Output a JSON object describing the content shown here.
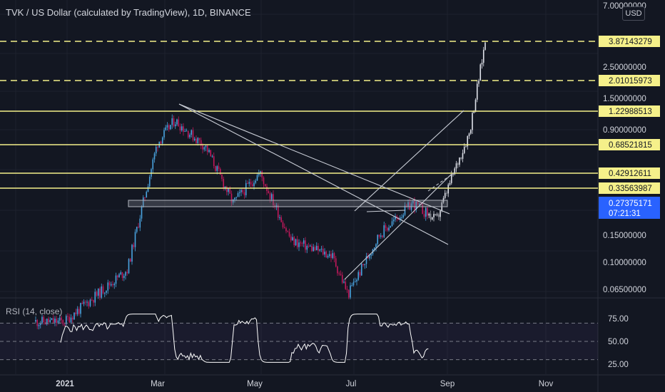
{
  "header": {
    "symbol_title": "TVK / US Dollar (calculated by TradingView), 1D, BINANCE",
    "currency_button": "USD",
    "rsi_title": "RSI (14, close)"
  },
  "colors": {
    "background": "#131722",
    "up_candle": "#4aa3df",
    "down_candle": "#c2185b",
    "level_line": "#f5f08a",
    "trendline": "#c9cdd6",
    "price_tag": "#2962ff",
    "rsi_line": "#ffffff"
  },
  "chart_data": [
    {
      "type": "candlestick",
      "scale": "log",
      "x_labels": [
        "2021",
        "Mar",
        "May",
        "Jul",
        "Sep",
        "Nov"
      ],
      "y_axis_labels": [
        "7.00000000",
        "2.50000000",
        "1.50000000",
        "0.90000000",
        "0.15000000",
        "0.10000000",
        "0.06500000"
      ],
      "price_levels": [
        {
          "value": "3.87143279",
          "style": "dashed"
        },
        {
          "value": "2.01015973",
          "style": "dashed"
        },
        {
          "value": "1.22988513",
          "style": "solid"
        },
        {
          "value": "0.68521815",
          "style": "solid"
        },
        {
          "value": "0.42912611",
          "style": "solid"
        },
        {
          "value": "0.33563987",
          "style": "solid"
        }
      ],
      "last_price": {
        "value": "0.27375171",
        "countdown": "07:21:31"
      },
      "series_close_approx": [
        {
          "x": "2021-01-01",
          "y": 0.06
        },
        {
          "x": "2021-02-10",
          "y": 0.13
        },
        {
          "x": "2021-02-20",
          "y": 0.35
        },
        {
          "x": "2021-03-01",
          "y": 0.85
        },
        {
          "x": "2021-03-12",
          "y": 1.2
        },
        {
          "x": "2021-04-01",
          "y": 0.8
        },
        {
          "x": "2021-04-18",
          "y": 0.35
        },
        {
          "x": "2021-05-05",
          "y": 0.55
        },
        {
          "x": "2021-05-25",
          "y": 0.2
        },
        {
          "x": "2021-06-20",
          "y": 0.16
        },
        {
          "x": "2021-06-30",
          "y": 0.09
        },
        {
          "x": "2021-07-20",
          "y": 0.22
        },
        {
          "x": "2021-08-10",
          "y": 0.35
        },
        {
          "x": "2021-08-25",
          "y": 0.27
        },
        {
          "x": "2021-09-05",
          "y": 0.55
        },
        {
          "x": "2021-09-15",
          "y": 1.0
        },
        {
          "x": "2021-09-25",
          "y": 3.87
        }
      ]
    },
    {
      "type": "line",
      "name": "RSI (14, close)",
      "y_axis_labels": [
        "75.00",
        "50.00",
        "25.00"
      ],
      "bands": {
        "upper": 70,
        "middle": 50,
        "lower": 30
      }
    }
  ]
}
